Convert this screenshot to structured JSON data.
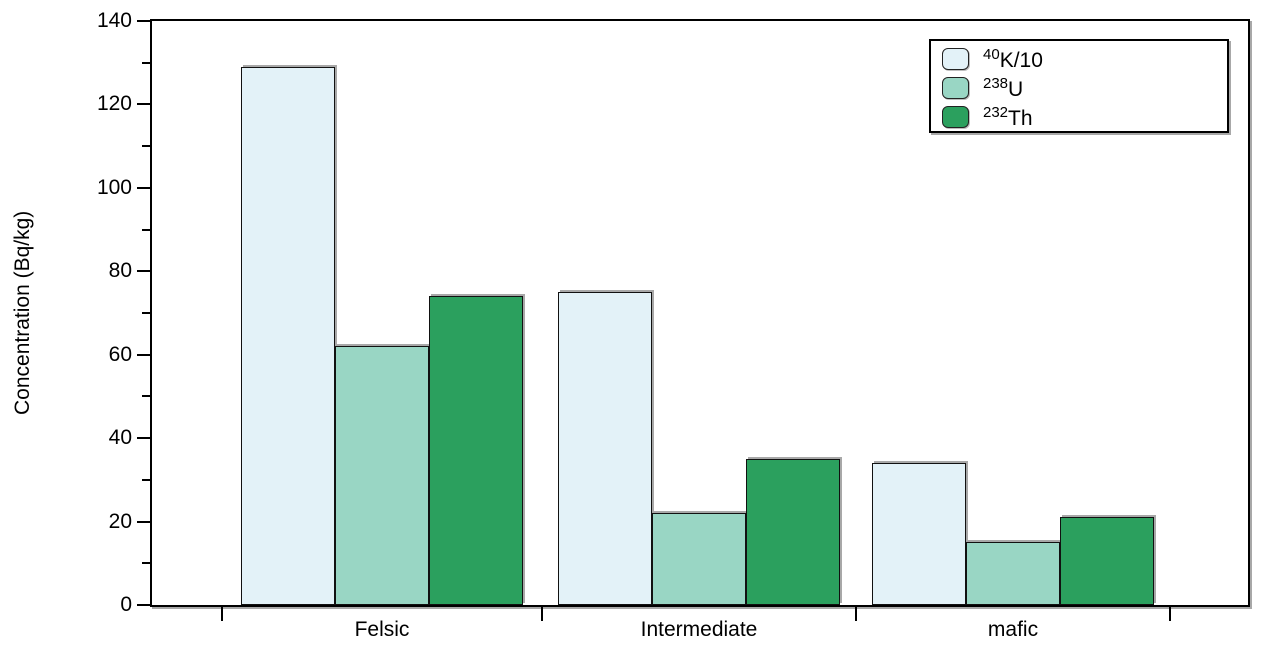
{
  "figure": {
    "background": "#ffffff"
  },
  "chart_data": {
    "type": "bar",
    "title": "",
    "ylabel": "Concentration (Bq/kg)",
    "xlabel": "",
    "ylim": [
      0,
      140
    ],
    "yticks": [
      0,
      20,
      40,
      60,
      80,
      100,
      120,
      140
    ],
    "yticks_minor": [
      10,
      30,
      50,
      70,
      90,
      110,
      130
    ],
    "categories": [
      "Felsic",
      "Intermediate",
      "mafic"
    ],
    "series": [
      {
        "name": "40K/10",
        "sup": "40",
        "label": "K/10",
        "color": "#e3f2f8",
        "values": [
          129,
          75,
          34
        ]
      },
      {
        "name": "238U",
        "sup": "238",
        "label": "U",
        "color": "#99d6c4",
        "values": [
          62,
          22,
          15
        ]
      },
      {
        "name": "232Th",
        "sup": "232",
        "label": "Th",
        "color": "#2ba05e",
        "values": [
          74,
          35,
          21
        ]
      }
    ],
    "legend_position": "top-right",
    "grid": false,
    "bar_border_color": "#111111",
    "axis_color": "#000000",
    "background": "#ffffff"
  }
}
